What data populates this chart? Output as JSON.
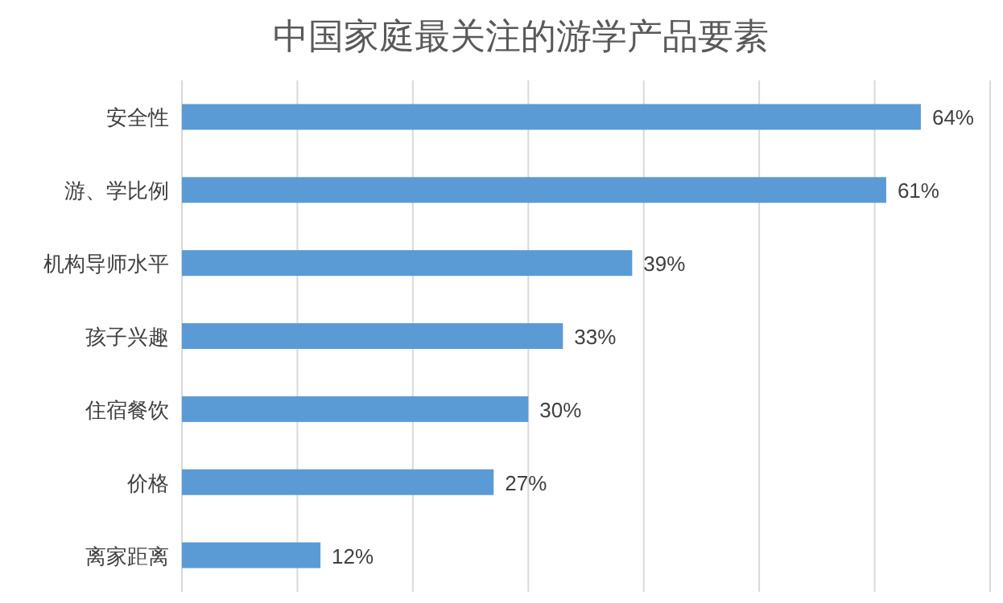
{
  "chart_data": {
    "type": "bar",
    "orientation": "horizontal",
    "title": "中国家庭最关注的游学产品要素",
    "categories": [
      "安全性",
      "游、学比例",
      "机构导师水平",
      "孩子兴趣",
      "住宿餐饮",
      "价格",
      "离家距离"
    ],
    "values": [
      64,
      61,
      39,
      33,
      30,
      27,
      12
    ],
    "value_labels": [
      "64%",
      "61%",
      "39%",
      "33%",
      "30%",
      "27%",
      "12%"
    ],
    "color": "#5b9bd5",
    "xlim": [
      0,
      70
    ],
    "xticks": [
      {
        "value": 0,
        "label": null
      },
      {
        "value": 10,
        "label": null
      },
      {
        "value": 20,
        "label": null
      },
      {
        "value": 30,
        "label": null
      },
      {
        "value": 40,
        "label": null
      },
      {
        "value": 50,
        "label": null
      },
      {
        "value": 60,
        "label": null
      },
      {
        "value": 70,
        "label": null
      }
    ],
    "grid": "x",
    "tick_labels": "y"
  }
}
